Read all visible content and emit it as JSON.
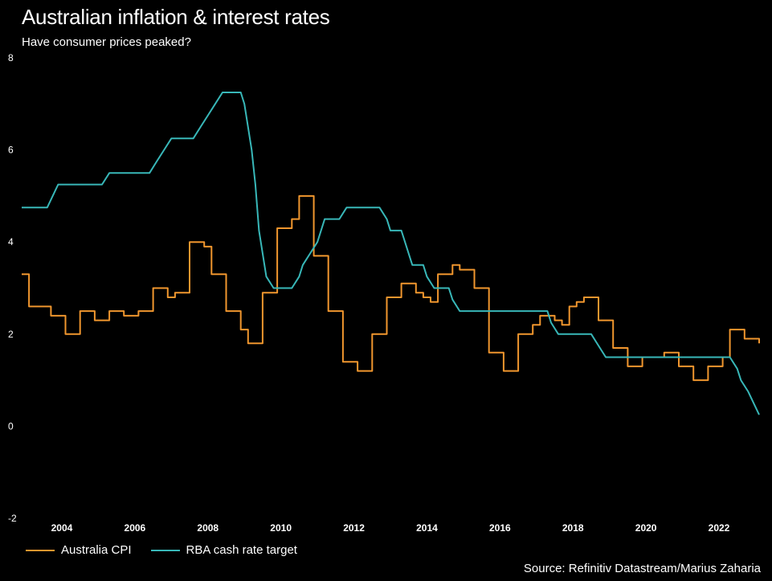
{
  "chart_data": {
    "type": "line",
    "title": "Australian inflation & interest rates",
    "subtitle": "Have consumer prices peaked?",
    "source": "Source: Refinitiv Datastream/Marius Zaharia",
    "xlim": [
      2002.9,
      2023.1
    ],
    "ylim": [
      -2,
      8
    ],
    "yticks": [
      "8",
      "6",
      "4",
      "2",
      "0",
      "-2"
    ],
    "xticks": [
      "2004",
      "2006",
      "2008",
      "2010",
      "2012",
      "2014",
      "2016",
      "2018",
      "2020",
      "2022"
    ],
    "grid": false,
    "legend_position": "bottom-left",
    "series": [
      {
        "name": "Australia CPI",
        "color": "#f0962e",
        "step": true,
        "points": [
          [
            2002.9,
            3.3
          ],
          [
            2003.1,
            2.6
          ],
          [
            2003.3,
            2.6
          ],
          [
            2003.5,
            2.6
          ],
          [
            2003.7,
            2.4
          ],
          [
            2003.9,
            2.4
          ],
          [
            2004.1,
            2.0
          ],
          [
            2004.3,
            2.0
          ],
          [
            2004.5,
            2.5
          ],
          [
            2004.7,
            2.5
          ],
          [
            2004.9,
            2.3
          ],
          [
            2005.1,
            2.3
          ],
          [
            2005.3,
            2.5
          ],
          [
            2005.5,
            2.5
          ],
          [
            2005.7,
            2.4
          ],
          [
            2005.9,
            2.4
          ],
          [
            2006.1,
            2.5
          ],
          [
            2006.3,
            2.5
          ],
          [
            2006.5,
            3.0
          ],
          [
            2006.7,
            3.0
          ],
          [
            2006.9,
            2.8
          ],
          [
            2007.1,
            2.9
          ],
          [
            2007.3,
            2.9
          ],
          [
            2007.5,
            4.0
          ],
          [
            2007.7,
            4.0
          ],
          [
            2007.9,
            3.9
          ],
          [
            2008.1,
            3.3
          ],
          [
            2008.3,
            3.3
          ],
          [
            2008.5,
            2.5
          ],
          [
            2008.7,
            2.5
          ],
          [
            2008.9,
            2.1
          ],
          [
            2009.1,
            1.8
          ],
          [
            2009.3,
            1.8
          ],
          [
            2009.5,
            2.9
          ],
          [
            2009.7,
            2.9
          ],
          [
            2009.9,
            4.3
          ],
          [
            2010.1,
            4.3
          ],
          [
            2010.3,
            4.5
          ],
          [
            2010.5,
            5.0
          ],
          [
            2010.7,
            5.0
          ],
          [
            2010.9,
            3.7
          ],
          [
            2011.1,
            3.7
          ],
          [
            2011.3,
            2.5
          ],
          [
            2011.5,
            2.5
          ],
          [
            2011.7,
            1.4
          ],
          [
            2011.9,
            1.4
          ],
          [
            2012.1,
            1.2
          ],
          [
            2012.3,
            1.2
          ],
          [
            2012.5,
            2.0
          ],
          [
            2012.7,
            2.0
          ],
          [
            2012.9,
            2.8
          ],
          [
            2013.1,
            2.8
          ],
          [
            2013.3,
            3.1
          ],
          [
            2013.5,
            3.1
          ],
          [
            2013.7,
            2.9
          ],
          [
            2013.9,
            2.8
          ],
          [
            2014.1,
            2.7
          ],
          [
            2014.3,
            3.3
          ],
          [
            2014.5,
            3.3
          ],
          [
            2014.7,
            3.5
          ],
          [
            2014.9,
            3.4
          ],
          [
            2015.1,
            3.4
          ],
          [
            2015.3,
            3.0
          ],
          [
            2015.5,
            3.0
          ],
          [
            2015.7,
            1.6
          ],
          [
            2015.9,
            1.6
          ],
          [
            2016.1,
            1.2
          ],
          [
            2016.3,
            1.2
          ],
          [
            2016.5,
            2.0
          ],
          [
            2016.7,
            2.0
          ],
          [
            2016.9,
            2.2
          ],
          [
            2017.1,
            2.4
          ],
          [
            2017.3,
            2.4
          ],
          [
            2017.5,
            2.3
          ],
          [
            2017.7,
            2.2
          ],
          [
            2017.9,
            2.6
          ],
          [
            2018.1,
            2.7
          ],
          [
            2018.3,
            2.8
          ],
          [
            2018.5,
            2.8
          ],
          [
            2018.7,
            2.3
          ],
          [
            2018.9,
            2.3
          ],
          [
            2019.1,
            1.7
          ],
          [
            2019.3,
            1.7
          ],
          [
            2019.5,
            1.3
          ],
          [
            2019.7,
            1.3
          ],
          [
            2019.9,
            1.5
          ],
          [
            2020.1,
            1.5
          ],
          [
            2020.3,
            1.5
          ],
          [
            2020.5,
            1.6
          ],
          [
            2020.7,
            1.6
          ],
          [
            2020.9,
            1.3
          ],
          [
            2021.1,
            1.3
          ],
          [
            2021.3,
            1.0
          ],
          [
            2021.5,
            1.0
          ],
          [
            2021.7,
            1.3
          ],
          [
            2021.9,
            1.3
          ],
          [
            2022.1,
            1.5
          ],
          [
            2022.3,
            2.1
          ],
          [
            2022.5,
            2.1
          ],
          [
            2022.7,
            1.9
          ],
          [
            2022.9,
            1.9
          ],
          [
            2023.1,
            1.8
          ]
        ]
      },
      {
        "name": "RBA cash rate target",
        "color": "#38b7b8",
        "step": false,
        "points": [
          [
            2002.9,
            4.75
          ],
          [
            2003.6,
            4.75
          ],
          [
            2003.9,
            5.25
          ],
          [
            2005.1,
            5.25
          ],
          [
            2005.3,
            5.5
          ],
          [
            2006.4,
            5.5
          ],
          [
            2006.6,
            5.75
          ],
          [
            2006.8,
            6.0
          ],
          [
            2007.0,
            6.25
          ],
          [
            2007.6,
            6.25
          ],
          [
            2007.8,
            6.5
          ],
          [
            2008.0,
            6.75
          ],
          [
            2008.2,
            7.0
          ],
          [
            2008.4,
            7.25
          ],
          [
            2008.9,
            7.25
          ],
          [
            2009.0,
            7.0
          ],
          [
            2009.2,
            6.0
          ],
          [
            2009.3,
            5.25
          ],
          [
            2009.4,
            4.25
          ],
          [
            2009.6,
            3.25
          ],
          [
            2009.8,
            3.0
          ],
          [
            2010.3,
            3.0
          ],
          [
            2010.5,
            3.25
          ],
          [
            2010.6,
            3.5
          ],
          [
            2010.8,
            3.75
          ],
          [
            2011.0,
            4.0
          ],
          [
            2011.2,
            4.5
          ],
          [
            2011.6,
            4.5
          ],
          [
            2011.8,
            4.75
          ],
          [
            2012.7,
            4.75
          ],
          [
            2012.9,
            4.5
          ],
          [
            2013.0,
            4.25
          ],
          [
            2013.3,
            4.25
          ],
          [
            2013.5,
            3.75
          ],
          [
            2013.6,
            3.5
          ],
          [
            2013.9,
            3.5
          ],
          [
            2014.0,
            3.25
          ],
          [
            2014.2,
            3.0
          ],
          [
            2014.6,
            3.0
          ],
          [
            2014.7,
            2.75
          ],
          [
            2014.9,
            2.5
          ],
          [
            2017.3,
            2.5
          ],
          [
            2017.4,
            2.25
          ],
          [
            2017.6,
            2.0
          ],
          [
            2018.5,
            2.0
          ],
          [
            2018.7,
            1.75
          ],
          [
            2018.9,
            1.5
          ],
          [
            2022.3,
            1.5
          ],
          [
            2022.5,
            1.25
          ],
          [
            2022.6,
            1.0
          ],
          [
            2022.8,
            0.75
          ],
          [
            2023.1,
            0.25
          ]
        ]
      }
    ]
  }
}
